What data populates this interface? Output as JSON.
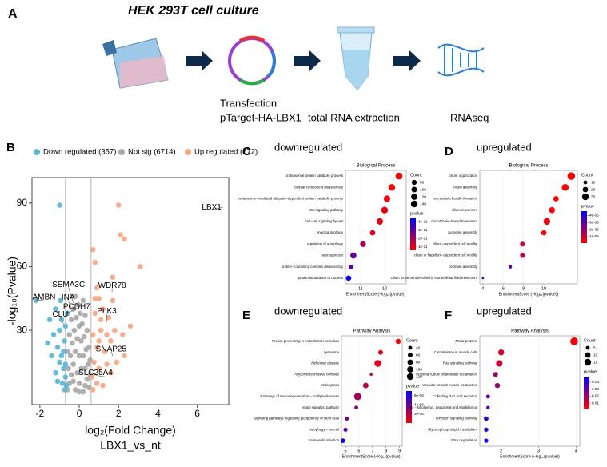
{
  "panel_a": {
    "label": "A",
    "title": "HEK 293T cell culture",
    "steps": [
      "Transfection",
      "pTarget-HA-LBX1",
      "total RNA extraction",
      "RNAseq"
    ]
  },
  "chart_data": [
    {
      "type": "scatter",
      "panel": "B",
      "xlabel": "log₂(Fold Change)",
      "subtitle": "LBX1_vs_nt",
      "ylabel": "-log₁₀(Pvalue)",
      "xlim": [
        -2.4,
        7.6
      ],
      "ylim": [
        -5,
        102
      ],
      "xticks": [
        -2,
        0,
        2,
        4,
        6
      ],
      "yticks": [
        30,
        60,
        90
      ],
      "vlines": [
        -0.7,
        0.6
      ],
      "series": [
        {
          "name": "Down regulated (357)",
          "color": "#5ab4d6",
          "x": [
            -2.2,
            -1.0,
            -1.5,
            -1.3,
            -1.2,
            -1.1,
            -1.0,
            -0.9,
            -0.8,
            -0.75,
            -0.7,
            -0.65,
            -0.9,
            -1.0,
            -1.2,
            -0.8,
            -0.7,
            -1.4,
            -1.1,
            -0.85,
            -0.95,
            -1.6,
            -0.7,
            -0.75,
            -0.6
          ],
          "y": [
            44,
            89,
            35,
            28,
            40,
            22,
            30,
            18,
            12,
            25,
            8,
            4,
            35,
            15,
            10,
            20,
            14,
            18,
            6,
            5,
            44,
            24,
            32,
            2,
            38
          ]
        },
        {
          "name": "Not sig (6714)",
          "color": "#a6a6a6",
          "x": [
            -0.6,
            -0.5,
            -0.4,
            -0.3,
            -0.2,
            -0.1,
            0,
            0.1,
            0.2,
            0.3,
            0.4,
            0.5,
            -0.55,
            -0.45,
            -0.35,
            -0.25,
            -0.15,
            -0.05,
            0.05,
            0.15,
            0.25,
            0.35,
            0.45,
            0.55,
            -0.6,
            -0.5,
            -0.4,
            -0.3,
            -0.2,
            0.2,
            0.3,
            0.4,
            0.5,
            0.55,
            -0.1,
            0,
            0.1,
            -0.3,
            0.3,
            0,
            -0.2,
            0.2,
            0
          ],
          "y": [
            2,
            5,
            9,
            14,
            20,
            26,
            32,
            25,
            18,
            12,
            7,
            3,
            12,
            18,
            24,
            30,
            36,
            42,
            38,
            33,
            27,
            21,
            14,
            9,
            20,
            28,
            35,
            40,
            46,
            44,
            37,
            30,
            22,
            16,
            10,
            5,
            12,
            6,
            4,
            18,
            2,
            1,
            1
          ]
        },
        {
          "name": "Up regulated (872)",
          "color": "#f4a582",
          "x": [
            2.0,
            2.1,
            2.3,
            3.1,
            0.7,
            0.8,
            1.7,
            0.9,
            1.0,
            1.2,
            0.8,
            1.5,
            1.8,
            1.1,
            0.7,
            0.9,
            1.3,
            1.6,
            2.2,
            0.75,
            1.0,
            1.4,
            0.65,
            0.9,
            1.2,
            0.7,
            1.9,
            2.3,
            1.1,
            0.8,
            1.6,
            1.0,
            1.4,
            2.6,
            1.7
          ],
          "y": [
            89,
            75,
            73,
            60,
            68,
            62,
            55,
            50,
            45,
            40,
            38,
            36,
            30,
            30,
            28,
            22,
            20,
            25,
            28,
            15,
            12,
            14,
            8,
            5,
            4,
            2,
            15,
            18,
            35,
            45,
            10,
            25,
            28,
            32,
            44
          ]
        }
      ],
      "annotations": [
        {
          "text": "LBX1",
          "x": 7.3,
          "y": 88,
          "color": "#e8221b"
        },
        {
          "text": "WDR78",
          "x": 1.67,
          "y": 48,
          "color": "#e8221b"
        },
        {
          "text": "SEMA3C",
          "x": -0.3,
          "y": 43,
          "color": "#e8221b"
        },
        {
          "text": "AMBN",
          "x": -2.2,
          "y": 44,
          "color": "#e8221b"
        },
        {
          "text": "INA",
          "x": -0.4,
          "y": 40,
          "color": "#e8221b"
        },
        {
          "text": "PCDH7",
          "x": -0.7,
          "y": 38,
          "color": "#e8221b"
        },
        {
          "text": "CLU",
          "x": -0.8,
          "y": 33,
          "color": "#e8221b"
        },
        {
          "text": "PLK3",
          "x": 1.4,
          "y": 34,
          "color": "#e8221b"
        },
        {
          "text": "SNAP25",
          "x": 1.7,
          "y": 18,
          "color": "#e8221b"
        },
        {
          "text": "SLC25A4",
          "x": 1.4,
          "y": 8,
          "color": "#e8221b"
        }
      ]
    },
    {
      "type": "dotplot",
      "panel": "C",
      "heading": "downregulated",
      "title": "Biological Process",
      "xlabel": "EnrichmentScore (−log₁₀(pvalue))",
      "categories": [
        "proteasomal protein catabolic process",
        "cellular component disassembly",
        "proteasome−mediated ubiquitin−dependent protein catabolic process",
        "Wnt signaling pathway",
        "cell−cell signaling by wnt",
        "macroautophagy",
        "regulation of autophagy",
        "axonogenesis",
        "protein−containing complex disassembly",
        "protein localization to nucleus"
      ],
      "values": [
        12.6,
        12.3,
        12.1,
        12.0,
        11.8,
        11.5,
        11.1,
        10.7,
        10.6,
        10.5
      ],
      "sizes": [
        148,
        138,
        132,
        140,
        130,
        88,
        105,
        118,
        62,
        92
      ],
      "pvalues": [
        7e-12,
        8e-12,
        8e-12,
        9e-12,
        1e-11,
        1.2e-11,
        2e-11,
        3e-11,
        3.2e-11,
        4.2e-11
      ],
      "xlim": [
        10.37,
        12.9
      ],
      "xticks": [
        11,
        12
      ],
      "size_title": "Count",
      "size_ticks": [
        80,
        100,
        120,
        140
      ],
      "color_title": "pvalue",
      "clim": [
        6e-12,
        4.4e-11
      ],
      "color_ticks": [
        4e-11,
        3e-11,
        2e-11,
        1e-11
      ],
      "colors": [
        "#ff0000",
        "#0000ff"
      ]
    },
    {
      "type": "dotplot",
      "panel": "D",
      "heading": "upregulated",
      "title": "Biological Process",
      "xlabel": "EnrichmentScore (−log₁₀(pvalue))",
      "categories": [
        "cilium organization",
        "cilium assembly",
        "microtubule bundle formation",
        "cilium movement",
        "microtubule−based movement",
        "axoneme assembly",
        "cilium−dependent cell motility",
        "cilium or flagellum−dependent cell motility",
        "centriole assembly",
        "cilium movement involved in extracellular fluid movement"
      ],
      "values": [
        12.7,
        12.1,
        11.2,
        10.8,
        10.3,
        10.0,
        7.9,
        7.9,
        6.7,
        4.0
      ],
      "sizes": [
        38,
        32,
        20,
        24,
        30,
        18,
        16,
        16,
        8,
        3
      ],
      "pvalues": [
        1e-06,
        1e-06,
        2e-06,
        2e-06,
        3e-06,
        4e-06,
        1.2e-05,
        1.2e-05,
        3e-05,
        4.5e-05
      ],
      "xlim": [
        3.7,
        13.3
      ],
      "xticks": [
        4,
        6,
        8,
        10
      ],
      "size_title": "Count",
      "size_ticks": [
        10,
        20,
        30
      ],
      "color_title": "pvalue",
      "clim": [
        1e-06,
        4.6e-05
      ],
      "color_ticks": [
        {
          "value": 4e-05,
          "label": "4e-05"
        },
        {
          "value": 3e-05,
          "label": "3e-05"
        },
        {
          "value": 2e-05,
          "label": "2e-05"
        },
        {
          "value": 1e-05,
          "label": "1e-05"
        }
      ],
      "colors": [
        "#ff0000",
        "#0000ff"
      ]
    },
    {
      "type": "dotplot",
      "panel": "E",
      "heading": "downregulated",
      "title": "Pathway Analysis",
      "xlabel": "EnrichmentScore (−log₁₀(pvalue))",
      "categories": [
        "Protein processing in endoplasmic reticulum",
        "Lysosome",
        "Alzheimer disease",
        "Polycomb repressive complex",
        "Endocytosis",
        "Pathways of neurodegeneration − multiple diseases",
        "Hippo signaling pathway",
        "Signaling pathways regulating pluripotency of stem cells",
        "Autophagy − animal",
        "Salmonella infection"
      ],
      "values": [
        8.9,
        7.6,
        7.4,
        6.9,
        6.5,
        5.9,
        5.8,
        5.1,
        5.0,
        4.8
      ],
      "sizes": [
        72,
        62,
        125,
        22,
        80,
        140,
        40,
        42,
        45,
        55
      ],
      "pvalues": [
        2e-07,
        8e-07,
        9e-07,
        1.5e-06,
        2e-06,
        2.5e-06,
        3e-06,
        4e-06,
        4.5e-06,
        6.8e-06
      ],
      "xlim": [
        4.7,
        9.2
      ],
      "xticks": [
        5,
        6,
        7,
        8,
        9
      ],
      "size_title": "Count",
      "size_ticks": [
        40,
        60,
        80,
        100,
        120
      ],
      "color_title": "pvalue",
      "clim": [
        1e-07,
        7e-06
      ],
      "color_ticks": [
        {
          "value": 6e-06,
          "label": "6e-06"
        },
        {
          "value": 4e-06,
          "label": "4e-06"
        },
        {
          "value": 2e-06,
          "label": "2e-06"
        }
      ],
      "colors": [
        "#ff0000",
        "#0000ff"
      ]
    },
    {
      "type": "dotplot",
      "panel": "F",
      "heading": "upregulated",
      "title": "Pathway Analysis",
      "xlabel": "EnrichmentScore (−log₁₀(pvalue))",
      "categories": [
        "Motor proteins",
        "Cytoskeleton in muscle cells",
        "Ras signaling pathway",
        "Proximal tubule bicarbonate reclamation",
        "Vascular smooth muscle contraction",
        "Collecting duct acid secretion",
        "ion − Ebolavirus, Lyssavirus and Morbillivirus",
        "Oxytocin signaling pathway",
        "Glycerophospholipid metabolism",
        "RNA degradation"
      ],
      "values": [
        3.95,
        2.0,
        1.95,
        1.85,
        1.9,
        1.65,
        1.65,
        1.6,
        1.6,
        1.6
      ],
      "sizes": [
        20,
        12,
        14,
        8,
        9,
        5,
        4,
        7,
        6,
        6
      ],
      "pvalues": [
        0.003,
        0.01,
        0.012,
        0.02,
        0.02,
        0.03,
        0.035,
        0.04,
        0.042,
        0.046
      ],
      "xlim": [
        1.43,
        4.1
      ],
      "xticks": [
        2,
        3,
        4
      ],
      "size_title": "Count",
      "size_ticks": [
        5,
        10,
        15
      ],
      "color_title": "pvalue",
      "clim": [
        0.002,
        0.048
      ],
      "color_ticks": [
        0.04,
        0.03,
        0.02,
        0.01
      ],
      "colors": [
        "#ff0000",
        "#0000ff"
      ]
    }
  ]
}
